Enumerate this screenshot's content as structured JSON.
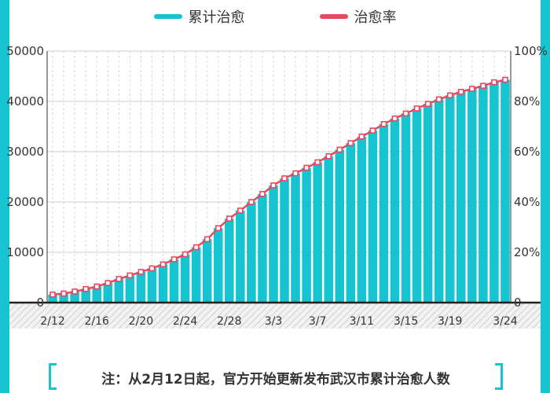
{
  "legend": {
    "cumulative_label": "累计治愈",
    "rate_label": "治愈率",
    "cumulative_color": "#16c3d0",
    "rate_color": "#e8485f"
  },
  "note": {
    "text": "注：从2月12日起，官方开始更新发布武汉市累计治愈人数"
  },
  "chart_data": {
    "type": "bar",
    "title": "",
    "x_tick_labels": [
      "2/12",
      "2/16",
      "2/20",
      "2/24",
      "2/28",
      "3/3",
      "3/7",
      "3/11",
      "3/15",
      "3/19",
      "3/24"
    ],
    "y_left_ticks": [
      "50000",
      "40000",
      "30000",
      "20000",
      "10000",
      "0"
    ],
    "y_right_ticks": [
      "100%",
      "80%",
      "60%",
      "40%",
      "20%",
      "0"
    ],
    "ylim_left": [
      0,
      50000
    ],
    "ylim_right": [
      0,
      100
    ],
    "grid": true,
    "legend_position": "top-center",
    "categories": [
      "2/12",
      "2/13",
      "2/14",
      "2/15",
      "2/16",
      "2/17",
      "2/18",
      "2/19",
      "2/20",
      "2/21",
      "2/22",
      "2/23",
      "2/24",
      "2/25",
      "2/26",
      "2/27",
      "2/28",
      "2/29",
      "3/1",
      "3/2",
      "3/3",
      "3/4",
      "3/5",
      "3/6",
      "3/7",
      "3/8",
      "3/9",
      "3/10",
      "3/11",
      "3/12",
      "3/13",
      "3/14",
      "3/15",
      "3/16",
      "3/17",
      "3/18",
      "3/19",
      "3/20",
      "3/21",
      "3/22",
      "3/23",
      "3/24"
    ],
    "series": [
      {
        "name": "累计治愈",
        "type": "bar",
        "axis": "left",
        "values": [
          1600,
          1800,
          2200,
          2700,
          3200,
          3900,
          4700,
          5400,
          6100,
          6800,
          7600,
          8600,
          9600,
          11000,
          12600,
          14800,
          16700,
          18300,
          20000,
          21600,
          23300,
          24700,
          25700,
          26800,
          27900,
          29100,
          30400,
          31700,
          33000,
          34200,
          35500,
          36600,
          37600,
          38600,
          39500,
          40400,
          41200,
          41900,
          42500,
          43100,
          43800,
          44300
        ]
      },
      {
        "name": "治愈率",
        "type": "line",
        "axis": "right",
        "values": [
          3.2,
          3.6,
          4.4,
          5.4,
          6.4,
          7.8,
          9.4,
          10.8,
          12.2,
          13.6,
          15.2,
          17.2,
          19.2,
          22.0,
          25.2,
          29.6,
          33.4,
          36.6,
          40.0,
          43.2,
          46.6,
          49.4,
          51.4,
          53.6,
          55.8,
          58.2,
          60.8,
          63.4,
          66.0,
          68.4,
          71.0,
          73.2,
          75.2,
          77.2,
          79.0,
          80.8,
          82.4,
          83.8,
          85.0,
          86.2,
          87.6,
          88.6
        ]
      }
    ]
  }
}
